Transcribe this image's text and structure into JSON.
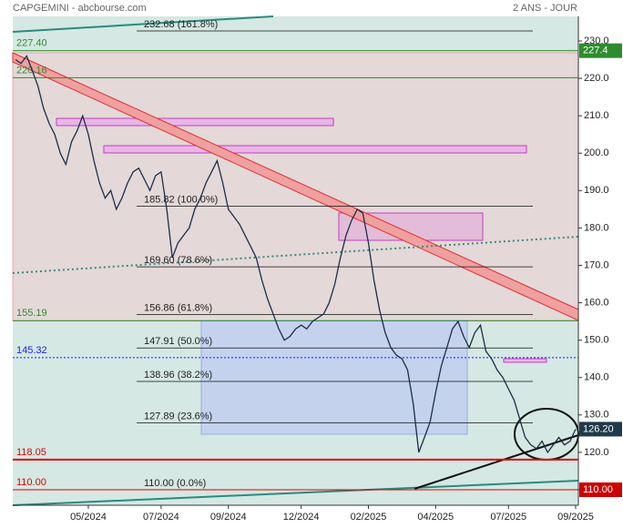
{
  "chart_data": {
    "type": "line",
    "title": "CAPGEMINI - abcbourse.com",
    "subtitle": "2 ANS - JOUR",
    "categories": [
      null,
      null,
      null,
      null,
      null,
      null,
      null,
      null,
      null,
      null,
      null,
      null,
      null,
      "05/2024",
      null,
      null,
      null,
      null,
      null,
      null,
      null,
      null,
      null,
      null,
      null,
      null,
      "07/2024",
      null,
      null,
      null,
      null,
      null,
      null,
      null,
      null,
      null,
      null,
      null,
      "09/2024",
      null,
      null,
      null,
      null,
      null,
      null,
      null,
      null,
      null,
      null,
      null,
      null,
      "12/2024",
      null,
      null,
      null,
      null,
      null,
      null,
      null,
      null,
      null,
      null,
      null,
      "02/2025",
      null,
      null,
      null,
      null,
      null,
      null,
      null,
      null,
      null,
      null,
      null,
      "04/2025",
      null,
      null,
      null,
      null,
      null,
      null,
      null,
      null,
      null,
      null,
      null,
      null,
      "07/2025",
      null,
      null,
      null,
      null,
      null,
      null,
      null,
      null,
      null,
      null,
      null,
      "09/2025"
    ],
    "series": [
      {
        "name": "CAPGEMINI",
        "color": "#1a2e4a",
        "values": [
          225,
          224,
          226,
          222,
          218,
          212,
          208,
          205,
          200,
          197,
          203,
          206,
          210,
          205,
          198,
          192,
          188,
          190,
          185,
          188,
          192,
          195,
          196,
          193,
          190,
          194,
          195,
          185,
          172,
          176,
          178,
          180,
          185,
          188,
          192,
          195,
          198,
          192,
          185,
          183,
          181,
          178,
          175,
          172,
          166,
          161,
          157,
          153,
          150,
          151,
          153,
          154,
          153,
          155,
          156,
          157,
          160,
          165,
          172,
          178,
          182,
          185,
          184,
          176,
          166,
          158,
          152,
          148,
          146,
          145,
          142,
          133,
          120,
          124,
          128,
          136,
          143,
          148,
          153,
          155,
          151,
          148,
          152,
          154,
          147,
          145,
          142,
          140,
          137,
          134,
          129,
          124,
          122,
          121,
          123,
          120,
          122,
          124,
          122,
          123,
          126.2
        ]
      }
    ],
    "ylim": [
      105.86,
      236.57
    ],
    "yticks": [
      {
        "value": 110,
        "label": "110.0"
      },
      {
        "value": 120,
        "label": "120.0"
      },
      {
        "value": 130,
        "label": "130.0"
      },
      {
        "value": 140,
        "label": "140.0"
      },
      {
        "value": 150,
        "label": "150.0"
      },
      {
        "value": 160,
        "label": "160.0"
      },
      {
        "value": 170,
        "label": "170.0"
      },
      {
        "value": 180,
        "label": "180.0"
      },
      {
        "value": 190,
        "label": "190.0"
      },
      {
        "value": 200,
        "label": "200.0"
      },
      {
        "value": 210,
        "label": "210.0"
      },
      {
        "value": 220,
        "label": "220.0"
      },
      {
        "value": 230,
        "label": "230.0"
      }
    ],
    "fibonacci": [
      {
        "value": 232.68,
        "label": "232.68  (161.8%)"
      },
      {
        "value": 185.82,
        "label": "185.82  (100.0%)"
      },
      {
        "value": 169.6,
        "label": "169.60  (78.6%)"
      },
      {
        "value": 156.86,
        "label": "156.86  (61.8%)"
      },
      {
        "value": 147.91,
        "label": "147.91  (50.0%)"
      },
      {
        "value": 138.96,
        "label": "138.96  (38.2%)"
      },
      {
        "value": 127.89,
        "label": "127.89  (23.6%)"
      },
      {
        "value": 110,
        "label": "110.00  (0.0%)"
      }
    ],
    "levels": [
      {
        "value": 227.4,
        "label": "227.40",
        "color": "#2e8b2e"
      },
      {
        "value": 220.16,
        "label": "220.16",
        "color": "#2e8b2e"
      },
      {
        "value": 155.19,
        "label": "155.19",
        "color": "#2e8b2e"
      },
      {
        "value": 145.32,
        "label": "145.32",
        "color": "#1a1aff"
      },
      {
        "value": 118.05,
        "label": "118.05",
        "color": "#dd0000"
      },
      {
        "value": 110,
        "label": "110.00",
        "color": "#dd0000"
      }
    ],
    "badges": [
      {
        "value": 227.4,
        "label": "227.4",
        "color": "#2e8b2e"
      },
      {
        "value": 126.2,
        "label": "126.20",
        "color": "#1f3a4a"
      },
      {
        "value": 110,
        "label": "110.00",
        "color": "#cc0000"
      }
    ]
  }
}
